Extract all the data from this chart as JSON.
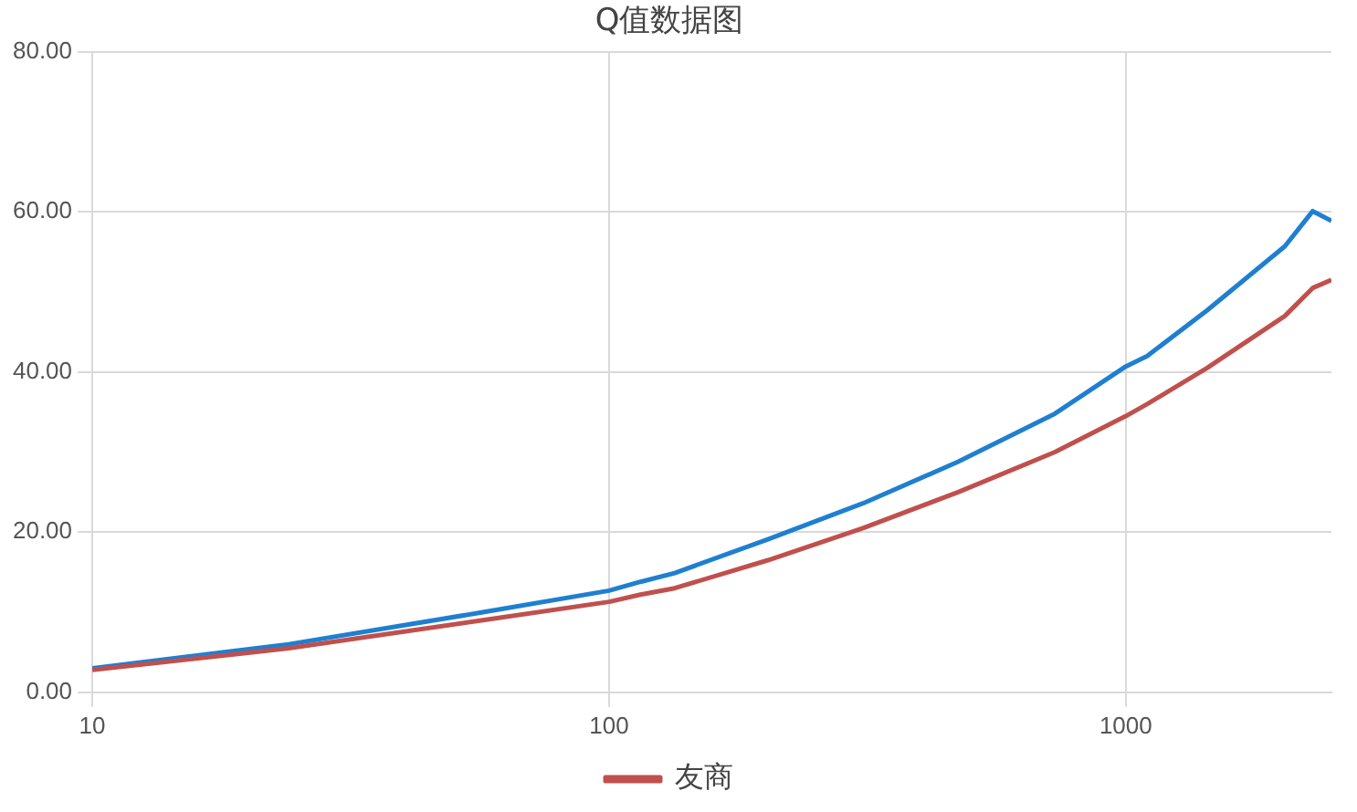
{
  "chart_data": {
    "type": "line",
    "title": "Q值数据图",
    "log": "x",
    "xlim": [
      10,
      2500
    ],
    "xticks": [
      10,
      100,
      1000
    ],
    "ylim": [
      0,
      80
    ],
    "yticks": [
      {
        "value": 0,
        "label": "0.00"
      },
      {
        "value": 20,
        "label": "20.00"
      },
      {
        "value": 40,
        "label": "40.00"
      },
      {
        "value": 60,
        "label": "60.00"
      },
      {
        "value": 80,
        "label": "80.00"
      }
    ],
    "grid": true,
    "legend": "bottom",
    "marker": "none",
    "line_style": "solid",
    "series": [
      {
        "name": "友商",
        "color": "#c0504d",
        "x": [
          10,
          24,
          57,
          100,
          115,
          134,
          203,
          310,
          474,
          729,
          1000,
          1100,
          1436,
          2031,
          2300,
          2500
        ],
        "values": [
          2.8,
          5.5,
          9,
          11.3,
          12.2,
          13,
          16.5,
          20.5,
          25,
          30,
          34.5,
          36,
          40.5,
          47,
          50.5,
          51.5
        ]
      },
      {
        "color": "#1f7fd0",
        "x": [
          10,
          24,
          57,
          100,
          115,
          134,
          203,
          310,
          474,
          729,
          1000,
          1100,
          1436,
          2031,
          2300,
          2500
        ],
        "values": [
          3,
          6,
          10,
          12.7,
          13.8,
          14.9,
          19.1,
          23.6,
          28.8,
          34.8,
          40.7,
          42,
          47.7,
          55.7,
          60.1,
          58.9
        ]
      }
    ]
  }
}
